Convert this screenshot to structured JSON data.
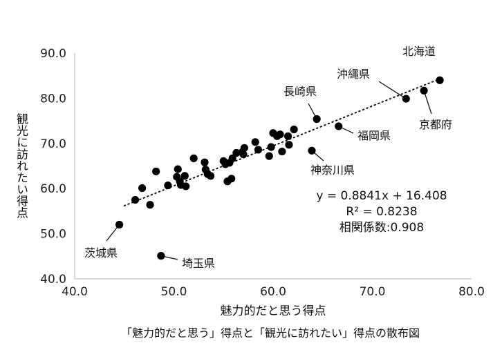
{
  "chart_data": {
    "type": "scatter",
    "caption": "「魅力的だと思う」得点と「観光に訪れたい」得点の散布図",
    "xlabel": "魅力的だと思う得点",
    "ylabel": "観光に訪れたい得点",
    "xlim": [
      40,
      80
    ],
    "ylim": [
      40,
      90
    ],
    "xticks": [
      40,
      50,
      60,
      70,
      80
    ],
    "yticks": [
      40,
      50,
      60,
      70,
      80,
      90
    ],
    "xtick_labels": [
      "40.0",
      "50.0",
      "60.0",
      "70.0",
      "80.0"
    ],
    "ytick_labels": [
      "40.0",
      "50.0",
      "60.0",
      "70.0",
      "80.0",
      "90.0"
    ],
    "grid": false,
    "points": [
      {
        "x": 76.8,
        "y": 84.0,
        "label": "北海道"
      },
      {
        "x": 73.4,
        "y": 79.9,
        "label": "沖縄県"
      },
      {
        "x": 75.2,
        "y": 81.7,
        "label": "京都府"
      },
      {
        "x": 64.4,
        "y": 75.4,
        "label": "長崎県"
      },
      {
        "x": 66.6,
        "y": 73.8,
        "label": "福岡県"
      },
      {
        "x": 63.9,
        "y": 68.4,
        "label": "神奈川県"
      },
      {
        "x": 44.5,
        "y": 52.0,
        "label": "茨城県"
      },
      {
        "x": 48.7,
        "y": 45.1,
        "label": "埼玉県"
      },
      {
        "x": 46.1,
        "y": 57.5,
        "label": ""
      },
      {
        "x": 46.8,
        "y": 60.1,
        "label": ""
      },
      {
        "x": 47.6,
        "y": 56.4,
        "label": ""
      },
      {
        "x": 48.2,
        "y": 63.8,
        "label": ""
      },
      {
        "x": 49.4,
        "y": 60.7,
        "label": ""
      },
      {
        "x": 50.3,
        "y": 62.6,
        "label": ""
      },
      {
        "x": 50.4,
        "y": 64.3,
        "label": ""
      },
      {
        "x": 50.6,
        "y": 61.6,
        "label": ""
      },
      {
        "x": 50.7,
        "y": 60.8,
        "label": ""
      },
      {
        "x": 51.1,
        "y": 62.8,
        "label": ""
      },
      {
        "x": 51.2,
        "y": 60.5,
        "label": ""
      },
      {
        "x": 52.0,
        "y": 66.7,
        "label": ""
      },
      {
        "x": 53.1,
        "y": 65.8,
        "label": ""
      },
      {
        "x": 53.2,
        "y": 64.2,
        "label": ""
      },
      {
        "x": 53.4,
        "y": 63.2,
        "label": ""
      },
      {
        "x": 53.7,
        "y": 62.8,
        "label": ""
      },
      {
        "x": 55.0,
        "y": 66.1,
        "label": ""
      },
      {
        "x": 55.2,
        "y": 65.4,
        "label": ""
      },
      {
        "x": 55.4,
        "y": 61.6,
        "label": ""
      },
      {
        "x": 55.6,
        "y": 65.7,
        "label": ""
      },
      {
        "x": 55.8,
        "y": 62.2,
        "label": ""
      },
      {
        "x": 55.9,
        "y": 66.7,
        "label": ""
      },
      {
        "x": 56.3,
        "y": 67.9,
        "label": ""
      },
      {
        "x": 56.9,
        "y": 68.1,
        "label": ""
      },
      {
        "x": 57.0,
        "y": 67.6,
        "label": ""
      },
      {
        "x": 57.1,
        "y": 69.0,
        "label": ""
      },
      {
        "x": 58.2,
        "y": 70.3,
        "label": ""
      },
      {
        "x": 58.5,
        "y": 68.6,
        "label": ""
      },
      {
        "x": 59.6,
        "y": 67.2,
        "label": ""
      },
      {
        "x": 59.8,
        "y": 69.2,
        "label": ""
      },
      {
        "x": 60.0,
        "y": 72.3,
        "label": ""
      },
      {
        "x": 60.4,
        "y": 71.6,
        "label": ""
      },
      {
        "x": 60.7,
        "y": 72.0,
        "label": ""
      },
      {
        "x": 60.9,
        "y": 68.2,
        "label": ""
      },
      {
        "x": 61.5,
        "y": 71.6,
        "label": ""
      },
      {
        "x": 61.6,
        "y": 69.7,
        "label": ""
      },
      {
        "x": 62.1,
        "y": 73.1,
        "label": ""
      }
    ],
    "trendline": {
      "slope": 0.8841,
      "intercept": 16.408,
      "x_range": [
        45.0,
        76.8
      ],
      "style": "dotted"
    },
    "annotations": {
      "equation": "y = 0.8841x + 16.408",
      "r_squared": "R² = 0.8238",
      "correlation": "相関係数:0.908"
    }
  }
}
